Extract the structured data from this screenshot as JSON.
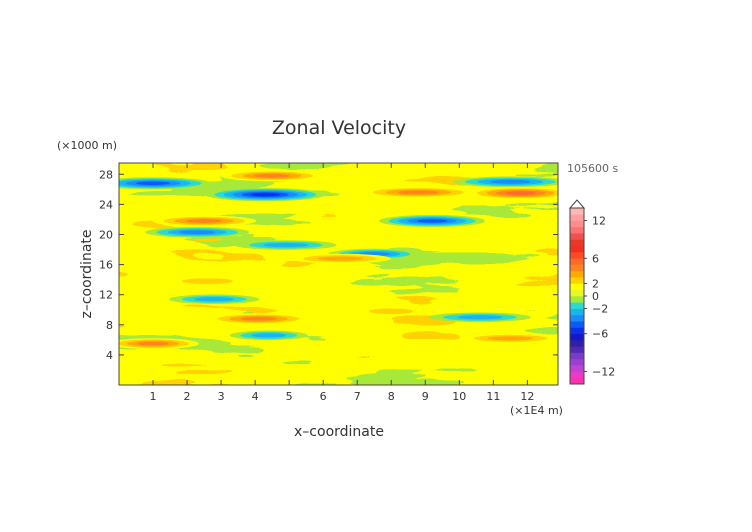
{
  "chart_data": {
    "type": "heatmap",
    "title": "Zonal Velocity",
    "xlabel": "x–coordinate",
    "ylabel": "z–coordinate",
    "x_unit": "(×1E4 m)",
    "y_unit": "(×1000 m)",
    "time_label": "105600 s",
    "xlim": [
      0,
      12.9
    ],
    "ylim": [
      0,
      29.5
    ],
    "x_ticks": [
      1,
      2,
      3,
      4,
      5,
      6,
      7,
      8,
      9,
      10,
      11,
      12
    ],
    "y_ticks": [
      4,
      8,
      12,
      16,
      20,
      24,
      28
    ],
    "colorbar": {
      "levels": [
        -14,
        -13,
        -12,
        -11,
        -10,
        -9,
        -8,
        -7,
        -6,
        -5,
        -4,
        -3,
        -2,
        -1,
        0,
        1,
        2,
        3,
        4,
        5,
        6,
        7,
        8,
        9,
        10,
        11,
        12,
        13,
        14
      ],
      "colors": [
        "#ff2fb4",
        "#e63cc8",
        "#c040d8",
        "#9a40d0",
        "#7a3cc4",
        "#5028b4",
        "#3020a8",
        "#1418c8",
        "#0a30e8",
        "#0a5cf8",
        "#1a8cf8",
        "#1ab4f0",
        "#2adcd0",
        "#a8e838",
        "#e8f820",
        "#ffff00",
        "#ffd200",
        "#ffaa00",
        "#ff8420",
        "#ff6a2a",
        "#ff4a24",
        "#f03020",
        "#e83828",
        "#f05050",
        "#ff7070",
        "#ff8c8c",
        "#ffa0a0",
        "#ffb6b6"
      ],
      "tick_values": [
        12,
        6,
        2,
        0,
        -2,
        -6,
        -12
      ],
      "tick_labels": [
        "12",
        "6",
        "2",
        "0",
        "−2",
        "−6",
        "−12"
      ]
    },
    "field_features": [
      {
        "x": 4.3,
        "z": 25.3,
        "v": -6
      },
      {
        "x": 1.0,
        "z": 26.8,
        "v": -5
      },
      {
        "x": 11.5,
        "z": 27.0,
        "v": -4
      },
      {
        "x": 9.2,
        "z": 21.8,
        "v": -5
      },
      {
        "x": 2.3,
        "z": 20.3,
        "v": -4
      },
      {
        "x": 4.9,
        "z": 18.6,
        "v": -3
      },
      {
        "x": 7.5,
        "z": 17.4,
        "v": -4
      },
      {
        "x": 2.8,
        "z": 11.4,
        "v": -3
      },
      {
        "x": 10.6,
        "z": 9.0,
        "v": -3
      },
      {
        "x": 4.4,
        "z": 6.6,
        "v": -3
      },
      {
        "x": 4.5,
        "z": 27.8,
        "v": 4
      },
      {
        "x": 8.8,
        "z": 25.6,
        "v": 4
      },
      {
        "x": 11.8,
        "z": 25.5,
        "v": 5
      },
      {
        "x": 2.5,
        "z": 21.8,
        "v": 4
      },
      {
        "x": 6.5,
        "z": 16.8,
        "v": 3
      },
      {
        "x": 1.0,
        "z": 5.5,
        "v": 4
      },
      {
        "x": 4.1,
        "z": 8.8,
        "v": 4
      },
      {
        "x": 11.5,
        "z": 6.2,
        "v": 3
      },
      {
        "x": 8.0,
        "z": 9.8,
        "v": 2.5
      },
      {
        "x": 2.6,
        "z": 13.8,
        "v": 2.5
      }
    ]
  }
}
